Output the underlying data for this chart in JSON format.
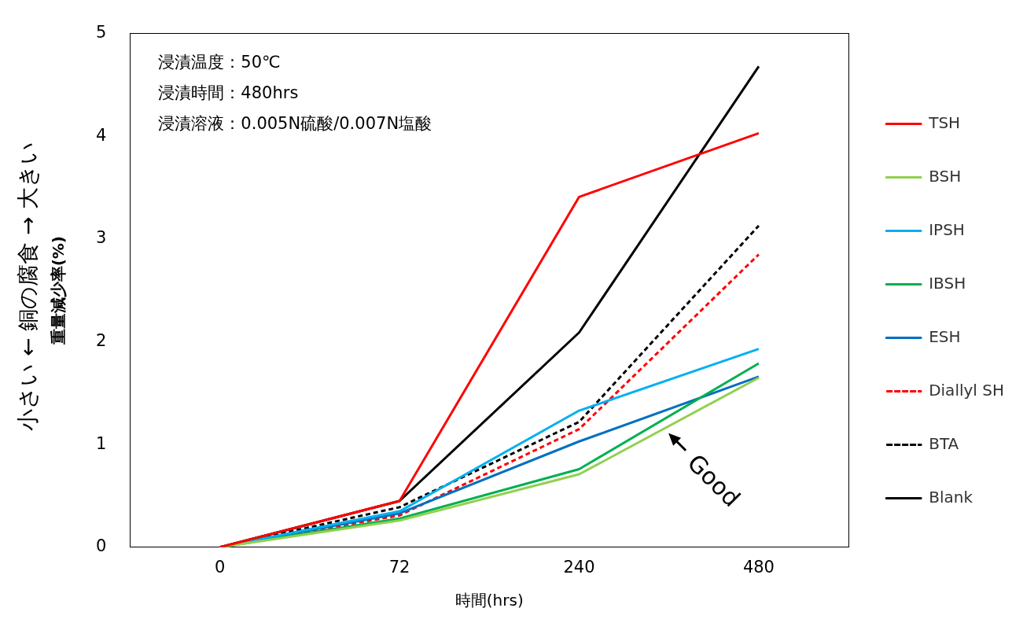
{
  "chart_data": {
    "type": "line",
    "xlabel": "時間(hrs)",
    "ylabel": "重量減少率(%)",
    "categories": [
      "0",
      "72",
      "240",
      "480"
    ],
    "ylim": [
      0,
      5
    ],
    "yticks": [
      0,
      1,
      2,
      3,
      4,
      5
    ],
    "grid": false,
    "legend": "right",
    "marker": "none",
    "line_style": "solid",
    "series": [
      {
        "name": "TSH",
        "color": "#ff0000",
        "values": [
          0,
          0.45,
          3.41,
          4.03
        ]
      },
      {
        "name": "BSH",
        "color": "#92d050",
        "values": [
          0,
          0.26,
          0.71,
          1.65
        ]
      },
      {
        "name": "IPSH",
        "color": "#00b0f0",
        "values": [
          0,
          0.35,
          1.33,
          1.93
        ]
      },
      {
        "name": "IBSH",
        "color": "#00b050",
        "values": [
          0,
          0.28,
          0.76,
          1.79
        ]
      },
      {
        "name": "ESH",
        "color": "#0070c0",
        "values": [
          0,
          0.33,
          1.03,
          1.66
        ]
      },
      {
        "name": "Diallyl SH",
        "color": "#ff0000",
        "line_style": "dashed",
        "values": [
          0,
          0.31,
          1.15,
          2.85
        ]
      },
      {
        "name": "BTA",
        "color": "#000000",
        "line_style": "dashed",
        "values": [
          0,
          0.39,
          1.22,
          3.13
        ]
      },
      {
        "name": "Blank",
        "color": "#000000",
        "values": [
          0,
          0.45,
          2.09,
          4.68
        ]
      }
    ],
    "annotations": [
      "浸漬温度：50℃",
      "浸漬時間：480hrs",
      "浸漬溶液：0.005N硫酸/0.007N塩酸",
      "Good",
      "小さい ← 銅の腐食 → 大きい"
    ]
  }
}
